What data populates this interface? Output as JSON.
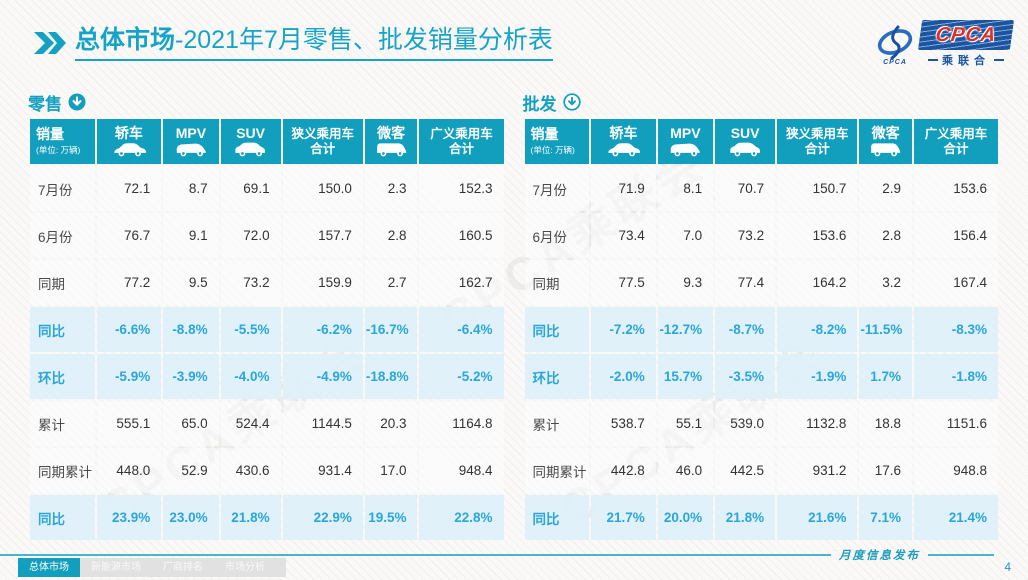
{
  "page": {
    "title_section": "总体市场",
    "title_rest": "-2021年7月零售、批发销量分析表"
  },
  "logo": {
    "swoosh_caption": "CPCA",
    "main_text": "CPCA",
    "sub_text": "乘联合"
  },
  "columns": [
    {
      "title": "销量",
      "subtitle": "(单位: 万辆)"
    },
    {
      "title": "轿车",
      "icon": "sedan-car-icon"
    },
    {
      "title": "MPV",
      "icon": "mpv-car-icon"
    },
    {
      "title": "SUV",
      "icon": "suv-car-icon"
    },
    {
      "title": "狭义乘用车",
      "title2": "合计"
    },
    {
      "title": "微客",
      "icon": "van-car-icon"
    },
    {
      "title": "广义乘用车",
      "title2": "合计"
    }
  ],
  "tables": [
    {
      "name": "零售",
      "arrow_icon": "down-arrow-circle-solid-icon",
      "rows": [
        {
          "label": "7月份",
          "highlight": false,
          "bold": false,
          "values": [
            "72.1",
            "8.7",
            "69.1",
            "150.0",
            "2.3",
            "152.3"
          ]
        },
        {
          "label": "6月份",
          "highlight": false,
          "bold": false,
          "values": [
            "76.7",
            "9.1",
            "72.0",
            "157.7",
            "2.8",
            "160.5"
          ]
        },
        {
          "label": "同期",
          "highlight": false,
          "bold": false,
          "values": [
            "77.2",
            "9.5",
            "73.2",
            "159.9",
            "2.7",
            "162.7"
          ]
        },
        {
          "label": "同比",
          "highlight": true,
          "bold": false,
          "values": [
            "-6.6%",
            "-8.8%",
            "-5.5%",
            "-6.2%",
            "-16.7%",
            "-6.4%"
          ]
        },
        {
          "label": "环比",
          "highlight": true,
          "bold": false,
          "values": [
            "-5.9%",
            "-3.9%",
            "-4.0%",
            "-4.9%",
            "-18.8%",
            "-5.2%"
          ]
        },
        {
          "label": "累计",
          "highlight": false,
          "bold": false,
          "values": [
            "555.1",
            "65.0",
            "524.4",
            "1144.5",
            "20.3",
            "1164.8"
          ]
        },
        {
          "label": "同期累计",
          "highlight": false,
          "bold": false,
          "values": [
            "448.0",
            "52.9",
            "430.6",
            "931.4",
            "17.0",
            "948.4"
          ]
        },
        {
          "label": "同比",
          "highlight": true,
          "bold": true,
          "values": [
            "23.9%",
            "23.0%",
            "21.8%",
            "22.9%",
            "19.5%",
            "22.8%"
          ]
        }
      ]
    },
    {
      "name": "批发",
      "arrow_icon": "down-arrow-circle-outline-icon",
      "rows": [
        {
          "label": "7月份",
          "highlight": false,
          "bold": false,
          "values": [
            "71.9",
            "8.1",
            "70.7",
            "150.7",
            "2.9",
            "153.6"
          ]
        },
        {
          "label": "6月份",
          "highlight": false,
          "bold": false,
          "values": [
            "73.4",
            "7.0",
            "73.2",
            "153.6",
            "2.8",
            "156.4"
          ]
        },
        {
          "label": "同期",
          "highlight": false,
          "bold": false,
          "values": [
            "77.5",
            "9.3",
            "77.4",
            "164.2",
            "3.2",
            "167.4"
          ]
        },
        {
          "label": "同比",
          "highlight": true,
          "bold": false,
          "values": [
            "-7.2%",
            "-12.7%",
            "-8.7%",
            "-8.2%",
            "-11.5%",
            "-8.3%"
          ]
        },
        {
          "label": "环比",
          "highlight": true,
          "bold": false,
          "values": [
            "-2.0%",
            "15.7%",
            "-3.5%",
            "-1.9%",
            "1.7%",
            "-1.8%"
          ]
        },
        {
          "label": "累计",
          "highlight": false,
          "bold": false,
          "values": [
            "538.7",
            "55.1",
            "539.0",
            "1132.8",
            "18.8",
            "1151.6"
          ]
        },
        {
          "label": "同期累计",
          "highlight": false,
          "bold": false,
          "values": [
            "442.8",
            "46.0",
            "442.5",
            "931.2",
            "17.6",
            "948.8"
          ]
        },
        {
          "label": "同比",
          "highlight": true,
          "bold": true,
          "values": [
            "21.7%",
            "20.0%",
            "21.8%",
            "21.6%",
            "7.1%",
            "21.4%"
          ]
        }
      ]
    }
  ],
  "watermark": "CPCA乘联会",
  "footer": {
    "tabs": [
      {
        "label": "总体市场",
        "active": true
      },
      {
        "label": "新能源市场",
        "active": false
      },
      {
        "label": "厂商排名",
        "active": false
      },
      {
        "label": "市场分析",
        "active": false
      }
    ],
    "publication_label": "月度信息发布",
    "page_number": "4"
  },
  "colors": {
    "accent_teal": "#119FBD",
    "title_teal": "#16A4C6",
    "percent_blue": "#2AA6D8",
    "highlight_row_bg": "#DEF0FA",
    "logo_blue": "#1B55A2",
    "logo_red": "#D9302C"
  }
}
